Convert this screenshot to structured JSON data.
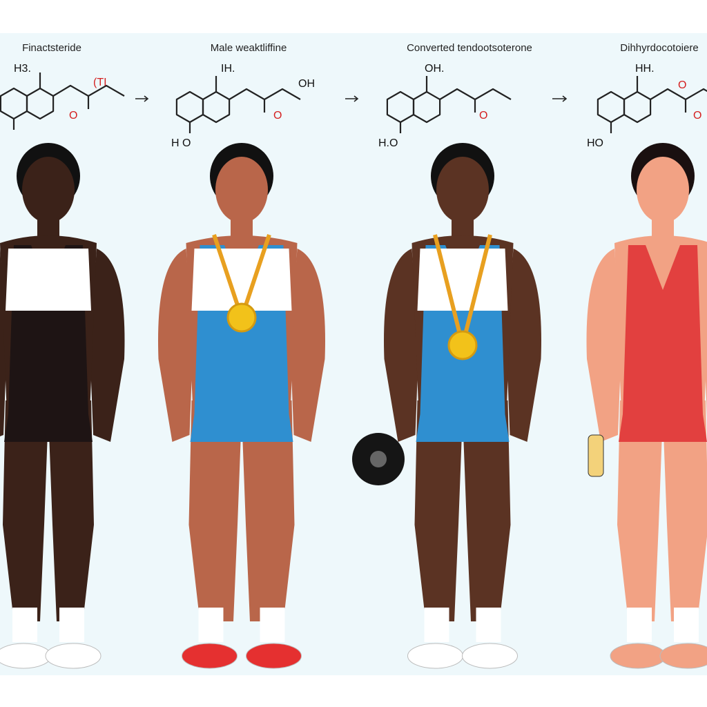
{
  "panels": [
    {
      "title": "Finactsteride",
      "labels": [
        "H3.",
        "(TI",
        "O"
      ]
    },
    {
      "title": "Male weaktliffine",
      "labels": [
        "IH.",
        "OH",
        "O",
        "H O"
      ]
    },
    {
      "title": "Converted tendootsoterone",
      "labels": [
        "OH.",
        "O",
        "H.O"
      ]
    },
    {
      "title": "Dihhyrdocotoiere",
      "labels": [
        "HH.",
        "O",
        "O",
        "HO"
      ]
    }
  ]
}
